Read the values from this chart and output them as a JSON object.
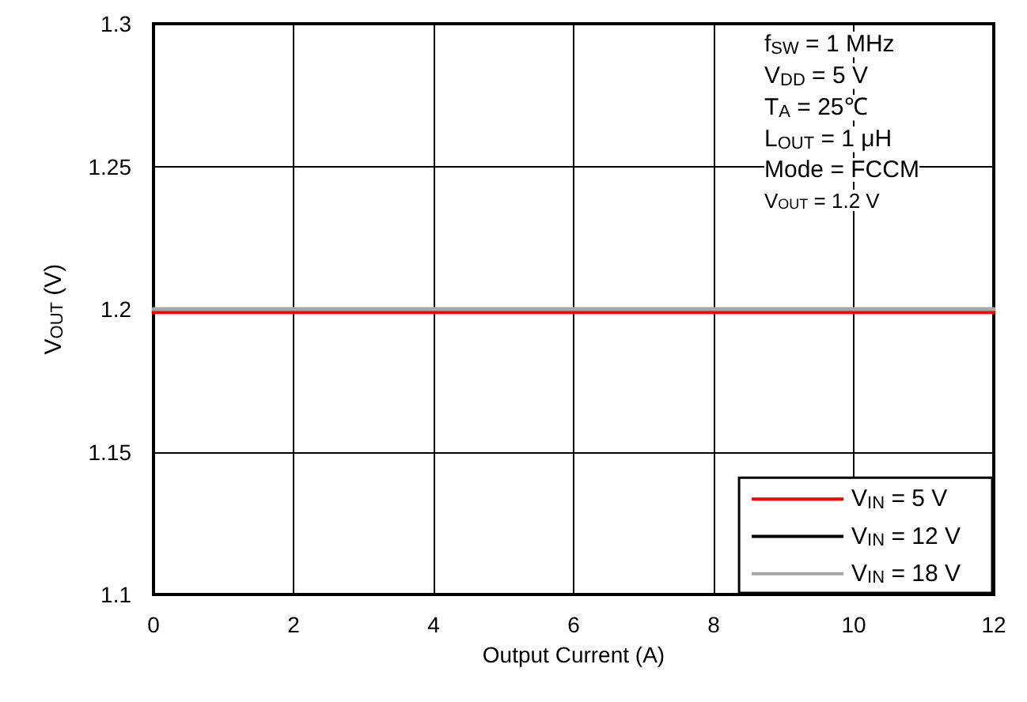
{
  "chart_data": {
    "type": "line",
    "xlabel": "Output Current (A)",
    "ylabel": "V$_{OUT}$ (V)",
    "x": [
      0,
      12
    ],
    "series": [
      {
        "name": "V$_{IN}$ = 5 V",
        "color": "#ff0000",
        "values": [
          1.199,
          1.199
        ]
      },
      {
        "name": "V$_{IN}$ = 12 V",
        "color": "#000000",
        "values": [
          null,
          null
        ]
      },
      {
        "name": "V$_{IN}$ = 18 V",
        "color": "#a6a6a6",
        "values": [
          1.2,
          1.2
        ]
      }
    ],
    "xlim": [
      0,
      12
    ],
    "xticks": [
      0,
      2,
      4,
      6,
      8,
      10,
      12
    ],
    "ylim": [
      1.1,
      1.3
    ],
    "yticks": [
      1.1,
      1.15,
      1.2,
      1.25,
      1.3
    ],
    "grid": true,
    "legend": "bottom right",
    "marker": "none",
    "line_style": "solid",
    "annotations": [
      "f$_{SW}$ = 1 MHz",
      "V$_{DD}$ = 5 V",
      "T$_{A}$ = 25℃",
      "L$_{OUT}$ = 1 μH",
      "Mode = FCCM",
      "V$_{OUT}$ = 1.2 V"
    ]
  }
}
